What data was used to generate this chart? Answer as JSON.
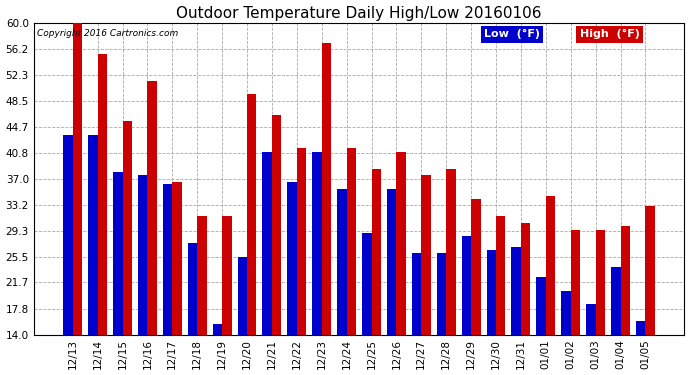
{
  "title": "Outdoor Temperature Daily High/Low 20160106",
  "copyright": "Copyright 2016 Cartronics.com",
  "legend_low": "Low  (°F)",
  "legend_high": "High  (°F)",
  "categories": [
    "12/13",
    "12/14",
    "12/15",
    "12/16",
    "12/17",
    "12/18",
    "12/19",
    "12/20",
    "12/21",
    "12/22",
    "12/23",
    "12/24",
    "12/25",
    "12/26",
    "12/27",
    "12/28",
    "12/29",
    "12/30",
    "12/31",
    "01/01",
    "01/02",
    "01/03",
    "01/04",
    "01/05"
  ],
  "low_values": [
    43.5,
    43.5,
    38.0,
    37.5,
    36.2,
    27.5,
    15.5,
    25.5,
    41.0,
    36.5,
    41.0,
    35.5,
    29.0,
    35.5,
    26.0,
    26.0,
    28.5,
    26.5,
    27.0,
    22.5,
    20.5,
    18.5,
    24.0,
    16.0
  ],
  "high_values": [
    60.0,
    55.5,
    45.5,
    51.5,
    36.5,
    31.5,
    31.5,
    49.5,
    46.5,
    41.5,
    57.0,
    41.5,
    38.5,
    41.0,
    37.5,
    38.5,
    34.0,
    31.5,
    30.5,
    34.5,
    29.5,
    29.5,
    30.0,
    33.0
  ],
  "ylim_min": 14.0,
  "ylim_max": 60.0,
  "yticks": [
    14.0,
    17.8,
    21.7,
    25.5,
    29.3,
    33.2,
    37.0,
    40.8,
    44.7,
    48.5,
    52.3,
    56.2,
    60.0
  ],
  "low_color": "#0000cc",
  "high_color": "#cc0000",
  "bg_color": "#ffffff",
  "plot_bg_color": "#ffffff",
  "grid_color": "#aaaaaa",
  "title_fontsize": 11,
  "tick_fontsize": 7.5,
  "bar_width": 0.38,
  "legend_low_bg": "#0000cc",
  "legend_high_bg": "#cc0000",
  "legend_text_color": "#ffffff"
}
